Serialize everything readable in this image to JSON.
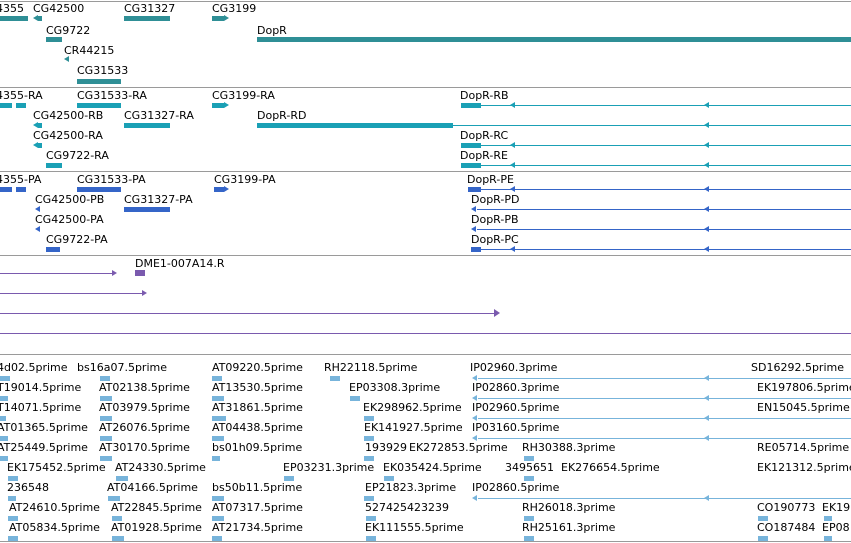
{
  "colors": {
    "gene": "#2f8f96",
    "transcript_cds": "#1aa0b5",
    "protein": "#3565c8",
    "clone": "#7a5aae",
    "est": "#77b4db",
    "separator": "#9a9a9a"
  },
  "gene_track": {
    "labels": [
      "4355",
      "CG42500",
      "CG31327",
      "CG3199",
      "DopR",
      "CG9722",
      "CR44215",
      "CG31533"
    ]
  },
  "transcript_track": {
    "labels": [
      "4355-RA",
      "CG31533-RA",
      "CG3199-RA",
      "DopR-RB",
      "CG42500-RB",
      "CG31327-RA",
      "DopR-RD",
      "CG42500-RA",
      "DopR-RC",
      "CG9722-RA",
      "DopR-RE"
    ]
  },
  "protein_track": {
    "labels": [
      "4355-PA",
      "CG31533-PA",
      "CG3199-PA",
      "DopR-PE",
      "CG42500-PB",
      "CG31327-PA",
      "DopR-PD",
      "CG42500-PA",
      "DopR-PB",
      "CG9722-PA",
      "DopR-PC"
    ]
  },
  "clone_track": {
    "labels": [
      "DME1-007A14.R"
    ]
  },
  "est_track": {
    "labels": [
      "4d02.5prime",
      "bs16a07.5prime",
      "AT09220.5prime",
      "RH22118.5prime",
      "IP02960.3prime",
      "SD16292.5prime",
      "T19014.5prime",
      "AT02138.5prime",
      "AT13530.5prime",
      "EP03308.3prime",
      "IP02860.3prime",
      "EK197806.5prime",
      "T14071.5prime",
      "AT03979.5prime",
      "AT31861.5prime",
      "EK298962.5prime",
      "IP02960.5prime",
      "EN15045.5prime",
      "AT01365.5prime",
      "AT26076.5prime",
      "AT04438.5prime",
      "EK141927.5prime",
      "IP03160.5prime",
      "AT25449.5prime",
      "AT30170.5prime",
      "bs01h09.5prime",
      "193929",
      "EK272853.5prime",
      "RH30388.3prime",
      "RE05714.5prime",
      "EK175452.5prime",
      "AT24330.5prime",
      "EP03231.3prime",
      "EK035424.5prime",
      "3495651",
      "EK276654.5prime",
      "EK121312.5prime",
      "236548",
      "AT04166.5prime",
      "bs50b11.5prime",
      "EP21823.3prime",
      "IP02860.5prime",
      "AT24610.5prime",
      "AT22845.5prime",
      "AT07317.5prime",
      "527425423239",
      "RH26018.3prime",
      "CO190773",
      "EK19",
      "AT05834.5prime",
      "AT01928.5prime",
      "AT21734.5prime",
      "EK111555.5prime",
      "RH25161.3prime",
      "CO187484",
      "EP08"
    ]
  }
}
